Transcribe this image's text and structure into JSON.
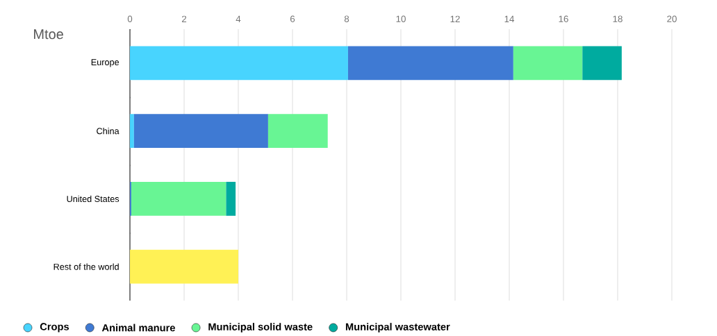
{
  "chart_data": {
    "type": "bar",
    "orientation": "horizontal",
    "stacked": true,
    "xlabel": "Mtoe",
    "categories": [
      "Europe",
      "China",
      "United States",
      "Rest of the world"
    ],
    "series": [
      {
        "name": "Crops",
        "color": "#48d4fe",
        "values": [
          8.05,
          0.15,
          null,
          null
        ]
      },
      {
        "name": "Animal manure",
        "color": "#3f7ad3",
        "values": [
          6.1,
          4.95,
          0.05,
          null
        ]
      },
      {
        "name": "Municipal solid waste",
        "color": "#68f594",
        "values": [
          2.55,
          2.2,
          3.5,
          null
        ]
      },
      {
        "name": "Municipal wastewater",
        "color": "#00ab9f",
        "values": [
          1.45,
          null,
          0.35,
          null
        ]
      },
      {
        "color": "#fff155",
        "values": [
          null,
          null,
          null,
          4.0
        ]
      }
    ],
    "xlim": [
      0,
      20
    ],
    "xticks": [
      0,
      2,
      4,
      6,
      8,
      10,
      12,
      14,
      16,
      18,
      20
    ],
    "grid": "x",
    "legend": "bottom"
  }
}
